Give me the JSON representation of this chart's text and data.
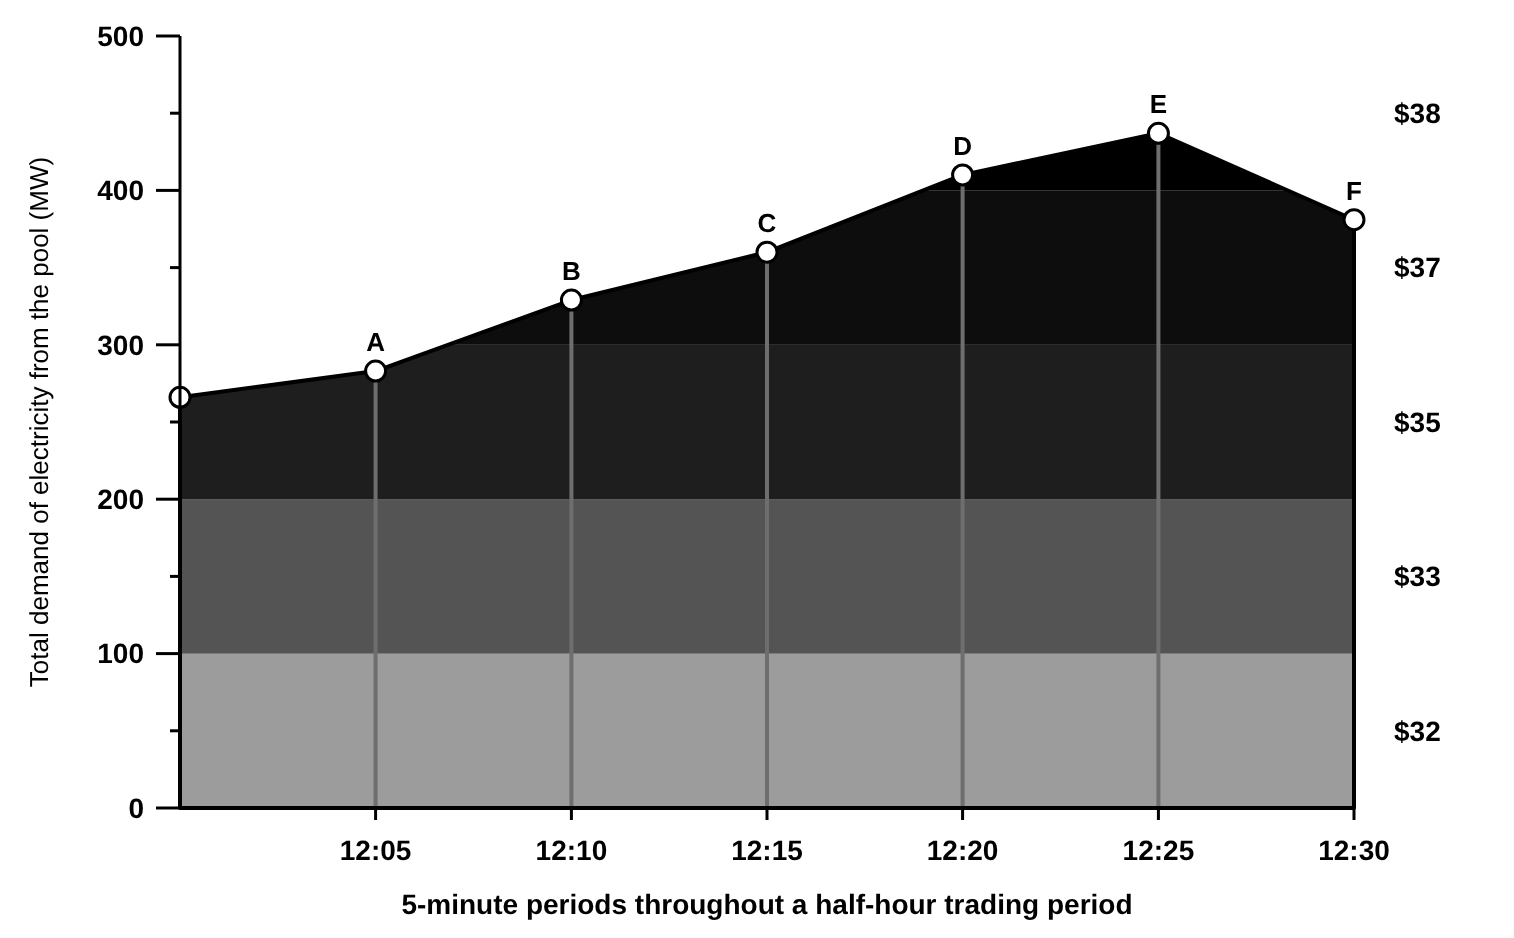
{
  "chart_data": {
    "type": "area",
    "xlabel": "5-minute periods throughout a half-hour trading period",
    "ylabel": "Total demand of electricity from the pool (MW)",
    "x": [
      12,
      12.0833,
      12.1667,
      12.25,
      12.3333,
      12.4167,
      12.5
    ],
    "series": [
      {
        "color": "#000000",
        "values": [
          266,
          283,
          329,
          360,
          410,
          437,
          381
        ]
      }
    ],
    "marker": "circle",
    "grid": "x",
    "xlim": [
      12,
      12.5
    ],
    "xticks": [
      {
        "value": 12.0833,
        "label": "12:05"
      },
      {
        "value": 12.1667,
        "label": "12:10"
      },
      {
        "value": 12.25,
        "label": "12:15"
      },
      {
        "value": 12.3333,
        "label": "12:20"
      },
      {
        "value": 12.4167,
        "label": "12:25"
      },
      {
        "value": 12.5,
        "label": "12:30"
      }
    ],
    "ylim": [
      0,
      500
    ],
    "yticks": [
      0,
      {
        "value": 50,
        "label": null
      },
      100,
      {
        "value": 150,
        "label": null
      },
      200,
      {
        "value": 250,
        "label": null
      },
      300,
      {
        "value": 350,
        "label": null
      },
      400,
      {
        "value": 450,
        "label": null
      },
      500
    ],
    "bands": [
      {
        "axis": "y",
        "from": 0,
        "to": 100,
        "label": "$32",
        "color": "#c4c4c4"
      },
      {
        "axis": "y",
        "from": 100,
        "to": 200,
        "label": "$33",
        "color": "#6a6a6a"
      },
      {
        "axis": "y",
        "from": 200,
        "to": 300,
        "label": "$35",
        "color": "#262626"
      },
      {
        "axis": "y",
        "from": 300,
        "to": 400,
        "label": "$37",
        "color": "#111111"
      },
      {
        "axis": "y",
        "from": 400,
        "to": 500,
        "label": "$38",
        "color": "#000000"
      }
    ],
    "annotations": [
      {
        "text": "A",
        "x": 12.0833,
        "y": 283
      },
      {
        "text": "B",
        "x": 12.1667,
        "y": 329
      },
      {
        "text": "C",
        "x": 12.25,
        "y": 360
      },
      {
        "text": "D",
        "x": 12.3333,
        "y": 410
      },
      {
        "text": "E",
        "x": 12.4167,
        "y": 437
      },
      {
        "text": "F",
        "x": 12.5,
        "y": 381
      }
    ]
  }
}
